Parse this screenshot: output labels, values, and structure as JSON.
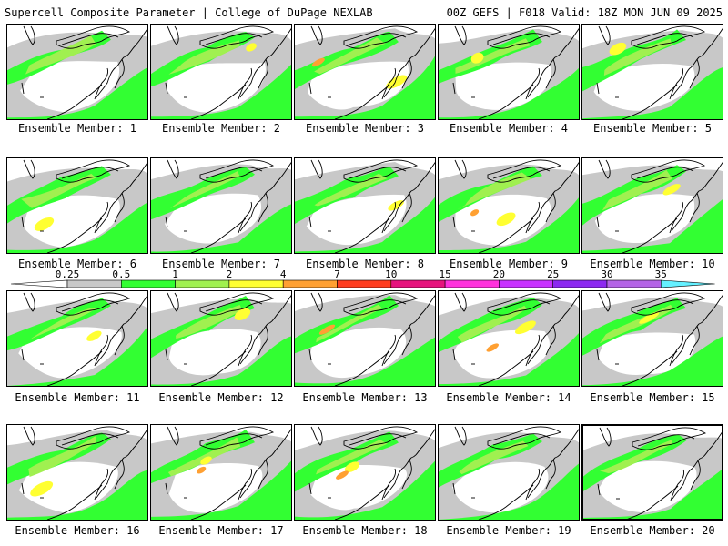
{
  "header": {
    "left": "Supercell Composite Parameter | College of DuPage NEXLAB",
    "right": "00Z GEFS | F018 Valid: 18Z MON JUN 09 2025"
  },
  "colorbar": {
    "labels": [
      "0.25",
      "0.5",
      "1",
      "2",
      "4",
      "7",
      "10",
      "15",
      "20",
      "25",
      "30",
      "35"
    ],
    "colors": [
      "#c8c8c8",
      "#32ff32",
      "#a0f050",
      "#ffff32",
      "#ffa032",
      "#ff3c1e",
      "#e6147d",
      "#ff32dc",
      "#c832ff",
      "#8c28f0",
      "#b464e6",
      "#64f0ff"
    ]
  },
  "panels": [
    {
      "label": "Ensemble Member: 1"
    },
    {
      "label": "Ensemble Member: 2"
    },
    {
      "label": "Ensemble Member: 3"
    },
    {
      "label": "Ensemble Member: 4"
    },
    {
      "label": "Ensemble Member: 5"
    },
    {
      "label": "Ensemble Member: 6"
    },
    {
      "label": "Ensemble Member: 7"
    },
    {
      "label": "Ensemble Member: 8"
    },
    {
      "label": "Ensemble Member: 9"
    },
    {
      "label": "Ensemble Member: 10"
    },
    {
      "label": "Ensemble Member: 11"
    },
    {
      "label": "Ensemble Member: 12"
    },
    {
      "label": "Ensemble Member: 13"
    },
    {
      "label": "Ensemble Member: 14"
    },
    {
      "label": "Ensemble Member: 15"
    },
    {
      "label": "Ensemble Member: 16"
    },
    {
      "label": "Ensemble Member: 17"
    },
    {
      "label": "Ensemble Member: 18"
    },
    {
      "label": "Ensemble Member: 19"
    },
    {
      "label": "Ensemble Member: 20",
      "selected": true
    }
  ]
}
